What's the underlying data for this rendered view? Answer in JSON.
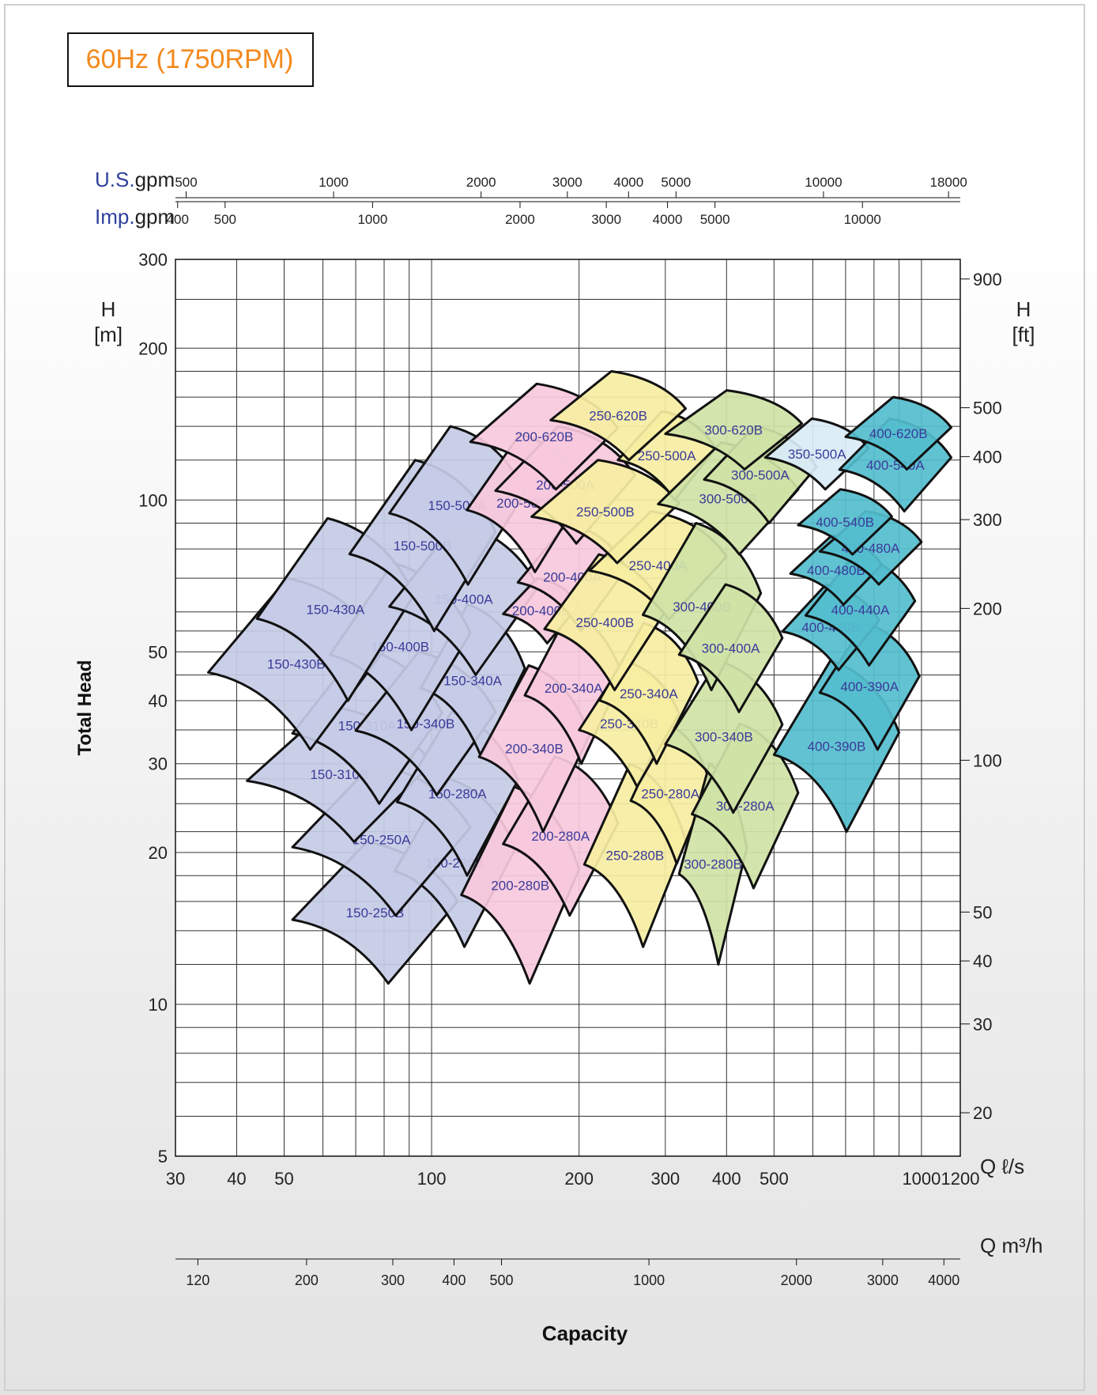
{
  "header": {
    "title": "60Hz (1750RPM)"
  },
  "chart_data": {
    "type": "area",
    "title": "60Hz (1750RPM)",
    "xlabel": "Capacity",
    "ylabel": "Total Head",
    "x_scale": "log",
    "y_scale": "log",
    "xlim": [
      30,
      1200
    ],
    "ylim": [
      5,
      300
    ],
    "primary_x_unit": "Q ℓ/s",
    "primary_y_unit": "H [m]",
    "x_ticks": [
      30,
      40,
      50,
      100,
      200,
      300,
      400,
      500,
      1000,
      1200
    ],
    "y_ticks": [
      5,
      10,
      20,
      30,
      40,
      50,
      100,
      200,
      300
    ],
    "secondary_axes": {
      "us_gpm": {
        "label_prefix": "U.S.",
        "label_suffix": "gpm",
        "ticks": [
          500,
          1000,
          2000,
          3000,
          4000,
          5000,
          10000,
          18000
        ]
      },
      "imp_gpm": {
        "label_prefix": "Imp.",
        "label_suffix": "gpm",
        "ticks": [
          400,
          500,
          1000,
          2000,
          3000,
          4000,
          5000,
          10000
        ]
      },
      "m3h": {
        "label": "Q m³/h",
        "ticks": [
          120,
          200,
          300,
          400,
          500,
          1000,
          2000,
          3000,
          4000
        ]
      },
      "ft": {
        "label_top": "H",
        "label_bottom": "[ft]",
        "ticks": [
          20,
          30,
          40,
          50,
          100,
          200,
          300,
          400,
          500,
          900
        ]
      }
    },
    "h_m_label": {
      "top": "H",
      "bottom": "[m]"
    },
    "colors": {
      "150": "#c6cbe6",
      "200": "#f7c9dc",
      "250": "#f6eea2",
      "300": "#cfe3a6",
      "350": "#d9ecf7",
      "400": "#54bece",
      "model_label": "#3a3a9a",
      "outline": "#111111"
    },
    "series": [
      {
        "name": "150-250B",
        "family": "150",
        "q": [
          52,
          113
        ],
        "h": [
          11,
          21
        ]
      },
      {
        "name": "150-280B",
        "family": "150",
        "q": [
          84,
          148
        ],
        "h": [
          13,
          28
        ]
      },
      {
        "name": "150-250A",
        "family": "150",
        "q": [
          52,
          120
        ],
        "h": [
          15,
          30
        ]
      },
      {
        "name": "150-310B",
        "family": "150",
        "q": [
          42,
          100
        ],
        "h": [
          21,
          39
        ]
      },
      {
        "name": "150-280A",
        "family": "150",
        "q": [
          85,
          150
        ],
        "h": [
          18,
          38
        ]
      },
      {
        "name": "150-310A",
        "family": "150",
        "q": [
          52,
          105
        ],
        "h": [
          25,
          51
        ]
      },
      {
        "name": "150-340B",
        "family": "150",
        "q": [
          70,
          135
        ],
        "h": [
          26,
          50
        ]
      },
      {
        "name": "150-340A",
        "family": "150",
        "q": [
          95,
          155
        ],
        "h": [
          31,
          62
        ]
      },
      {
        "name": "150-430B",
        "family": "150",
        "q": [
          35,
          80
        ],
        "h": [
          32,
          70
        ]
      },
      {
        "name": "150-400B",
        "family": "150",
        "q": [
          62,
          120
        ],
        "h": [
          35,
          75
        ]
      },
      {
        "name": "150-430A",
        "family": "150",
        "q": [
          44,
          92
        ],
        "h": [
          40,
          92
        ]
      },
      {
        "name": "150-400A",
        "family": "150",
        "q": [
          82,
          165
        ],
        "h": [
          45,
          90
        ]
      },
      {
        "name": "150-500B",
        "family": "150",
        "q": [
          68,
          135
        ],
        "h": [
          55,
          120
        ]
      },
      {
        "name": "150-500A",
        "family": "150",
        "q": [
          82,
          155
        ],
        "h": [
          68,
          140
        ]
      },
      {
        "name": "200-280B",
        "family": "200",
        "q": [
          115,
          200
        ],
        "h": [
          11,
          27
        ]
      },
      {
        "name": "200-280A",
        "family": "200",
        "q": [
          140,
          240
        ],
        "h": [
          15,
          31
        ]
      },
      {
        "name": "200-340B",
        "family": "200",
        "q": [
          125,
          210
        ],
        "h": [
          22,
          47
        ]
      },
      {
        "name": "200-340A",
        "family": "200",
        "q": [
          155,
          245
        ],
        "h": [
          30,
          60
        ]
      },
      {
        "name": "200-400B",
        "family": "200",
        "q": [
          140,
          200
        ],
        "h": [
          52,
          70
        ]
      },
      {
        "name": "200-400A",
        "family": "200",
        "q": [
          150,
          250
        ],
        "h": [
          55,
          90
        ]
      },
      {
        "name": "200-500B",
        "family": "200",
        "q": [
          118,
          205
        ],
        "h": [
          72,
          135
        ]
      },
      {
        "name": "200-500A",
        "family": "200",
        "q": [
          135,
          260
        ],
        "h": [
          82,
          140
        ]
      },
      {
        "name": "200-620B",
        "family": "200",
        "q": [
          120,
          240
        ],
        "h": [
          105,
          170
        ]
      },
      {
        "name": "250-280B",
        "family": "250",
        "q": [
          205,
          330
        ],
        "h": [
          13,
          30
        ]
      },
      {
        "name": "250-280A",
        "family": "250",
        "q": [
          255,
          370
        ],
        "h": [
          19,
          36
        ]
      },
      {
        "name": "250-340B",
        "family": "250",
        "q": [
          200,
          320
        ],
        "h": [
          27,
          48
        ]
      },
      {
        "name": "250-340A",
        "family": "250",
        "q": [
          220,
          350
        ],
        "h": [
          30,
          57
        ]
      },
      {
        "name": "250-400B",
        "family": "250",
        "q": [
          170,
          300
        ],
        "h": [
          42,
          78
        ]
      },
      {
        "name": "250-400A",
        "family": "250",
        "q": [
          210,
          400
        ],
        "h": [
          58,
          95
        ]
      },
      {
        "name": "250-500B",
        "family": "250",
        "q": [
          160,
          320
        ],
        "h": [
          75,
          120
        ]
      },
      {
        "name": "250-500A",
        "family": "250",
        "q": [
          240,
          380
        ],
        "h": [
          100,
          150
        ]
      },
      {
        "name": "250-620B",
        "family": "250",
        "q": [
          175,
          330
        ],
        "h": [
          120,
          180
        ]
      },
      {
        "name": "300-280B",
        "family": "300",
        "q": [
          320,
          440
        ],
        "h": [
          12,
          30
        ]
      },
      {
        "name": "300-280A",
        "family": "300",
        "q": [
          340,
          560
        ],
        "h": [
          17,
          36
        ]
      },
      {
        "name": "300-340B",
        "family": "300",
        "q": [
          300,
          520
        ],
        "h": [
          24,
          48
        ]
      },
      {
        "name": "300-400B",
        "family": "300",
        "q": [
          270,
          470
        ],
        "h": [
          42,
          90
        ]
      },
      {
        "name": "300-400A",
        "family": "300",
        "q": [
          320,
          520
        ],
        "h": [
          38,
          68
        ]
      },
      {
        "name": "300-500B",
        "family": "300",
        "q": [
          290,
          560
        ],
        "h": [
          78,
          130
        ]
      },
      {
        "name": "300-500A",
        "family": "300",
        "q": [
          360,
          610
        ],
        "h": [
          90,
          140
        ]
      },
      {
        "name": "300-620B",
        "family": "300",
        "q": [
          300,
          570
        ],
        "h": [
          115,
          165
        ]
      },
      {
        "name": "350-500A",
        "family": "350",
        "q": [
          480,
          780
        ],
        "h": [
          105,
          145
        ]
      },
      {
        "name": "400-390B",
        "family": "400",
        "q": [
          500,
          900
        ],
        "h": [
          22,
          48
        ]
      },
      {
        "name": "400-390A",
        "family": "400",
        "q": [
          620,
          990
        ],
        "h": [
          32,
          57
        ]
      },
      {
        "name": "400-440B",
        "family": "400",
        "q": [
          520,
          820
        ],
        "h": [
          46,
          68
        ]
      },
      {
        "name": "400-440A",
        "family": "400",
        "q": [
          580,
          970
        ],
        "h": [
          47,
          78
        ]
      },
      {
        "name": "400-480B",
        "family": "400",
        "q": [
          540,
          830
        ],
        "h": [
          62,
          85
        ]
      },
      {
        "name": "400-480A",
        "family": "400",
        "q": [
          620,
          1000
        ],
        "h": [
          68,
          95
        ]
      },
      {
        "name": "400-540B",
        "family": "400",
        "q": [
          560,
          870
        ],
        "h": [
          78,
          105
        ]
      },
      {
        "name": "400-540A",
        "family": "400",
        "q": [
          680,
          1150
        ],
        "h": [
          95,
          145
        ]
      },
      {
        "name": "400-620B",
        "family": "400",
        "q": [
          700,
          1150
        ],
        "h": [
          115,
          160
        ]
      }
    ]
  }
}
